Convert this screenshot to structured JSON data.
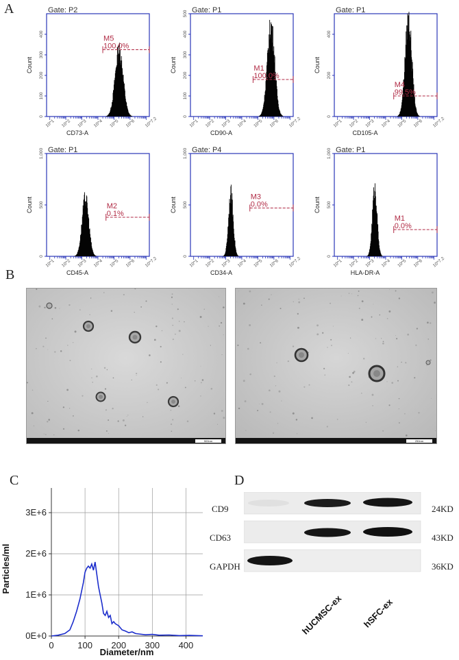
{
  "panels": {
    "A": "A",
    "B": "B",
    "C": "C",
    "D": "D"
  },
  "histograms": [
    {
      "gate": "Gate: P2",
      "xlabel": "CD73-A",
      "ylabel": "Count",
      "y_ticks": [
        "0",
        "100",
        "200",
        "300",
        "400"
      ],
      "ymax": 500,
      "marker": "M5",
      "pct": "100.0%",
      "peak_log": 5.3,
      "peak_count": 320,
      "width": 0.6,
      "marker_count": 325,
      "marker_start": 4.3
    },
    {
      "gate": "Gate: P1",
      "xlabel": "CD90-A",
      "ylabel": "Count",
      "y_ticks": [
        "0",
        "100",
        "200",
        "300",
        "400",
        "500"
      ],
      "ymax": 500,
      "marker": "M1",
      "pct": "100.0%",
      "peak_log": 5.8,
      "peak_count": 440,
      "width": 0.55,
      "marker_count": 180,
      "marker_start": 4.7
    },
    {
      "gate": "Gate: P1",
      "xlabel": "CD105-A",
      "ylabel": "Count",
      "y_ticks": [
        "0",
        "200",
        "400"
      ],
      "ymax": 500,
      "marker": "M4",
      "pct": "99.5%",
      "peak_log": 5.4,
      "peak_count": 470,
      "width": 0.5,
      "marker_count": 100,
      "marker_start": 4.5
    },
    {
      "gate": "Gate: P1",
      "xlabel": "CD45-A",
      "ylabel": "Count",
      "y_ticks": [
        "0",
        "500",
        "1,000"
      ],
      "ymax": 1000,
      "marker": "M2",
      "pct": "0.1%",
      "peak_log": 3.2,
      "peak_count": 560,
      "width": 0.5,
      "marker_count": 380,
      "marker_start": 4.5
    },
    {
      "gate": "Gate: P4",
      "xlabel": "CD34-A",
      "ylabel": "Count",
      "y_ticks": [
        "0",
        "500",
        "1,000"
      ],
      "ymax": 1000,
      "marker": "M3",
      "pct": "0.0%",
      "peak_log": 3.3,
      "peak_count": 610,
      "width": 0.35,
      "marker_count": 470,
      "marker_start": 4.5
    },
    {
      "gate": "Gate: P1",
      "xlabel": "HLA-DR-A",
      "ylabel": "Count",
      "y_ticks": [
        "0",
        "500",
        "1,000"
      ],
      "ymax": 1000,
      "marker": "M1",
      "pct": "0.0%",
      "peak_log": 3.3,
      "peak_count": 660,
      "width": 0.35,
      "marker_count": 260,
      "marker_start": 4.5
    }
  ],
  "x_tick_labels": [
    "10^1",
    "10^2",
    "10^3",
    "10^4",
    "10^5",
    "10^6",
    "10^7.2"
  ],
  "em_images": [
    {
      "scale": "500nm"
    },
    {
      "scale": "250nm"
    }
  ],
  "chart_data": {
    "type": "line",
    "xlabel": "Diameter/nm",
    "ylabel": "Particles/ml",
    "xlim": [
      0,
      450
    ],
    "ylim": [
      0,
      3600000
    ],
    "x_ticks": [
      0,
      100,
      200,
      300,
      400
    ],
    "y_ticks": [
      0,
      1000000,
      2000000,
      3000000
    ],
    "y_tick_labels": [
      "0E+0",
      "1E+6",
      "2E+6",
      "3E+6"
    ],
    "grid": true,
    "x": [
      0,
      20,
      40,
      55,
      65,
      75,
      85,
      95,
      100,
      105,
      110,
      115,
      120,
      125,
      130,
      135,
      140,
      145,
      150,
      155,
      160,
      165,
      170,
      175,
      180,
      185,
      190,
      200,
      210,
      220,
      230,
      240,
      250,
      260,
      280,
      300,
      320,
      350,
      380,
      410,
      450
    ],
    "y": [
      0,
      20000,
      60000,
      150000,
      350000,
      600000,
      900000,
      1300000,
      1550000,
      1650000,
      1700000,
      1650000,
      1750000,
      1600000,
      1800000,
      1500000,
      1200000,
      1000000,
      800000,
      550000,
      500000,
      600000,
      450000,
      500000,
      300000,
      350000,
      300000,
      250000,
      150000,
      120000,
      80000,
      100000,
      60000,
      50000,
      30000,
      40000,
      20000,
      25000,
      10000,
      15000,
      5000
    ]
  },
  "western_blot": {
    "rows": [
      "CD9",
      "CD63",
      "GAPDH"
    ],
    "sizes": [
      "24KD",
      "43KD",
      "36KD"
    ],
    "lanes": [
      "hUCMSC-ex",
      "hSFC-ex"
    ]
  }
}
